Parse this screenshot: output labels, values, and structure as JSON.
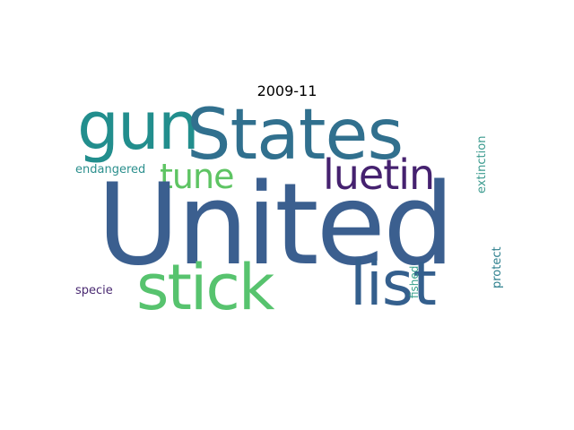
{
  "figure": {
    "title": "2009-11"
  },
  "words": {
    "united": {
      "text": "United",
      "color": "#3b5f8f"
    },
    "states": {
      "text": "States",
      "color": "#31708e"
    },
    "gun": {
      "text": "gun",
      "color": "#228e8d"
    },
    "stick": {
      "text": "stick",
      "color": "#57c36e"
    },
    "list": {
      "text": "list",
      "color": "#345f8d"
    },
    "luetin": {
      "text": "luetin",
      "color": "#45216f"
    },
    "tune": {
      "text": "tune",
      "color": "#5ec463"
    },
    "endangered": {
      "text": "endangered",
      "color": "#2b8f8d"
    },
    "specie": {
      "text": "specie",
      "color": "#4a2a72"
    },
    "extinction": {
      "text": "extinction",
      "color": "#3a9a8e"
    },
    "protect": {
      "text": "protect",
      "color": "#2d7f8d"
    },
    "fished": {
      "text": "fished",
      "color": "#36a08a"
    }
  }
}
